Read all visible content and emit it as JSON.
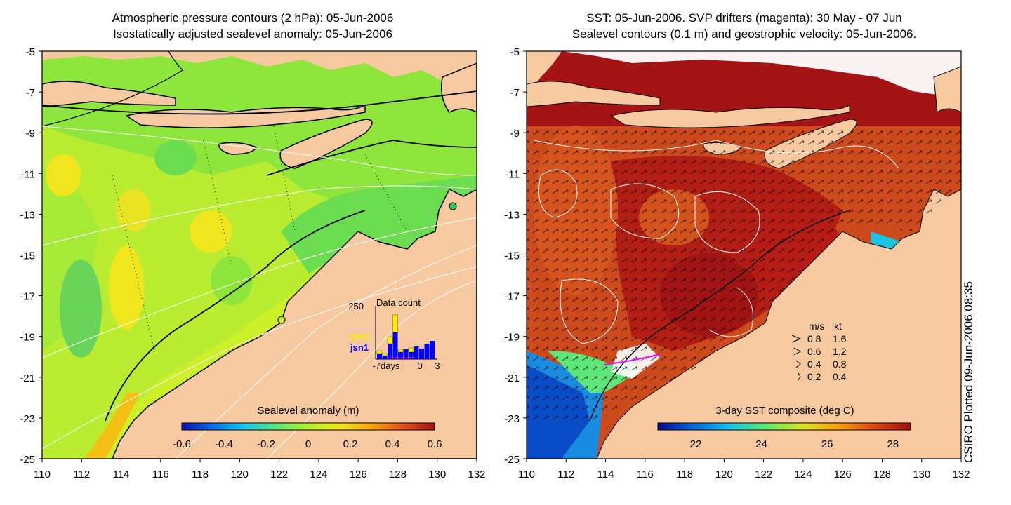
{
  "left_panel": {
    "title_line1": "Atmospheric pressure contours (2 hPa): 05-Jun-2006",
    "title_line2": "Isostatically adjusted sealevel anomaly: 05-Jun-2006",
    "colorbar": {
      "label": "Sealevel anomaly (m)",
      "ticks": [
        "-0.6",
        "-0.4",
        "-0.2",
        "0",
        "0.2",
        "0.4",
        "0.6"
      ],
      "colors": [
        "#0a10a8",
        "#0a6ee6",
        "#19c9e6",
        "#5ee67a",
        "#b4f032",
        "#f0e61e",
        "#f5a514",
        "#e6501e",
        "#a01414"
      ]
    },
    "inset": {
      "title": "Data count",
      "ymax_label": "250",
      "x_labels": [
        "-7days",
        "0",
        "3"
      ],
      "legend": [
        {
          "name": "GFO",
          "color": "#ffee00"
        },
        {
          "name": "jsn1",
          "color": "#0000ff"
        }
      ]
    }
  },
  "right_panel": {
    "title_line1": "SST: 05-Jun-2006. SVP drifters (magenta): 30 May - 07 Jun",
    "title_line2": "Sealevel contours (0.1 m) and geostrophic velocity: 05-Jun-2006.",
    "colorbar": {
      "label": "3-day SST composite (deg C)",
      "ticks": [
        "22",
        "24",
        "26",
        "28"
      ],
      "colors": [
        "#08088c",
        "#0a64dc",
        "#19c3e1",
        "#64e66e",
        "#d7e628",
        "#f5a014",
        "#dc4614",
        "#a00f0f"
      ]
    },
    "velocity_key": {
      "header_ms": "m/s",
      "header_kt": "kt",
      "rows": [
        {
          "ms": "0.8",
          "kt": "1.6"
        },
        {
          "ms": "0.6",
          "kt": "1.2"
        },
        {
          "ms": "0.4",
          "kt": "0.8"
        },
        {
          "ms": "0.2",
          "kt": "0.4"
        }
      ]
    }
  },
  "axes": {
    "x_ticks": [
      "110",
      "112",
      "114",
      "116",
      "118",
      "120",
      "122",
      "124",
      "126",
      "128",
      "130",
      "132"
    ],
    "y_ticks": [
      "-5",
      "-7",
      "-9",
      "-11",
      "-13",
      "-15",
      "-17",
      "-19",
      "-21",
      "-23",
      "-25"
    ]
  },
  "credit": "CSIRO Plotted 09-Jun-2006 08:35",
  "colors": {
    "land": "#f7c9a0",
    "sea_green": "#8ee63c",
    "sea_yellow": "#ccf02a",
    "sst_dark_red": "#a51414",
    "sst_orange": "#d2501e"
  }
}
